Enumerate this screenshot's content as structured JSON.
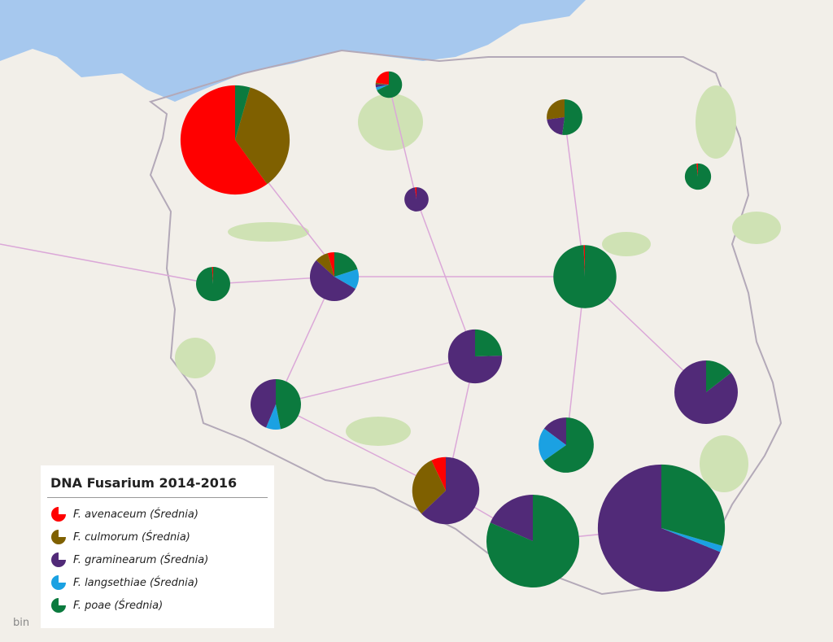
{
  "legend": {
    "title": "DNA Fusarium 2014-2016",
    "items": [
      {
        "label": "F. avenaceum (Średnia)",
        "color": "#ff0000"
      },
      {
        "label": "F. culmorum (Średnia)",
        "color": "#7f6000"
      },
      {
        "label": "F. graminearum (Średnia)",
        "color": "#512a78"
      },
      {
        "label": "F. langsethiae (Średnia)",
        "color": "#1ba1e2"
      },
      {
        "label": "F. poae (Średnia)",
        "color": "#0b7a3e"
      }
    ]
  },
  "pies": [
    {
      "values": [
        27,
        16,
        0,
        0,
        2
      ]
    },
    {
      "values": [
        0.6,
        0.05,
        0.1,
        0.1,
        1.8
      ]
    },
    {
      "values": [
        0,
        1.3,
        1.0,
        0,
        2.5
      ]
    },
    {
      "values": [
        0.05,
        0,
        0,
        0,
        2.55
      ]
    },
    {
      "values": [
        0.05,
        0,
        2.15,
        0,
        0
      ]
    },
    {
      "values": [
        0.05,
        0,
        0,
        0,
        4.35
      ]
    },
    {
      "values": [
        0.4,
        0.8,
        4.8,
        1.2,
        1.8
      ]
    },
    {
      "values": [
        0.1,
        0,
        0,
        0,
        14.9
      ]
    },
    {
      "values": [
        0,
        0,
        8.3,
        0,
        2.7
      ]
    },
    {
      "values": [
        0,
        0,
        4.2,
        0.9,
        4.5
      ]
    },
    {
      "values": [
        0,
        0,
        13,
        0,
        2.2
      ]
    },
    {
      "values": [
        0,
        0,
        1.7,
        2.3,
        7.5
      ]
    },
    {
      "values": [
        1.2,
        5.1,
        10.7,
        0,
        0
      ]
    },
    {
      "values": [
        0,
        0,
        6,
        0,
        26.5
      ]
    },
    {
      "values": [
        0,
        0,
        42,
        1,
        18
      ]
    }
  ],
  "attribution": "bin"
}
